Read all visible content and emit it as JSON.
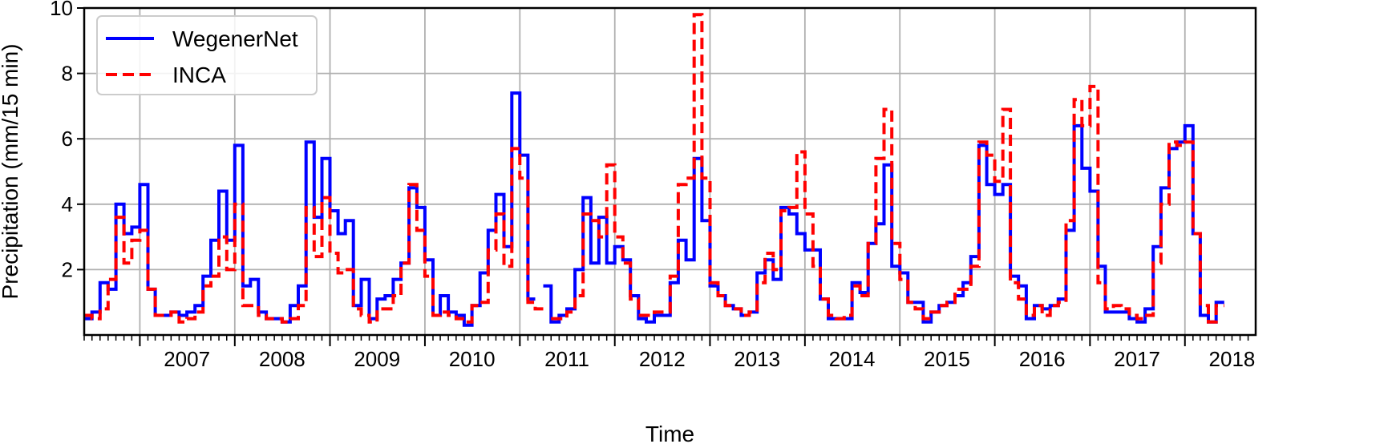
{
  "chart_data": {
    "type": "line",
    "xlabel": "Time",
    "ylabel": "Precipitation (mm/15 min)",
    "x_range": [
      "2006-06-01",
      "2018-09-30"
    ],
    "ylim": [
      0,
      10
    ],
    "yticks": [
      2,
      4,
      6,
      8,
      10
    ],
    "year_labels": [
      "2007",
      "2008",
      "2009",
      "2010",
      "2011",
      "2012",
      "2013",
      "2014",
      "2015",
      "2016",
      "2017",
      "2018"
    ],
    "grid": true,
    "legend": "top-left",
    "step": "post",
    "months": [
      "2006-06",
      "2006-07",
      "2006-08",
      "2006-09",
      "2006-10",
      "2006-11",
      "2006-12",
      "2007-01",
      "2007-02",
      "2007-03",
      "2007-04",
      "2007-05",
      "2007-06",
      "2007-07",
      "2007-08",
      "2007-09",
      "2007-10",
      "2007-11",
      "2007-12",
      "2008-01",
      "2008-02",
      "2008-03",
      "2008-04",
      "2008-05",
      "2008-06",
      "2008-07",
      "2008-08",
      "2008-09",
      "2008-10",
      "2008-11",
      "2008-12",
      "2009-01",
      "2009-02",
      "2009-03",
      "2009-04",
      "2009-05",
      "2009-06",
      "2009-07",
      "2009-08",
      "2009-09",
      "2009-10",
      "2009-11",
      "2009-12",
      "2010-01",
      "2010-02",
      "2010-03",
      "2010-04",
      "2010-05",
      "2010-06",
      "2010-07",
      "2010-08",
      "2010-09",
      "2010-10",
      "2010-11",
      "2010-12",
      "2011-01",
      "2011-02",
      "2011-03",
      "2011-04",
      "2011-05",
      "2011-06",
      "2011-07",
      "2011-08",
      "2011-09",
      "2011-10",
      "2011-11",
      "2011-12",
      "2012-01",
      "2012-02",
      "2012-03",
      "2012-04",
      "2012-05",
      "2012-06",
      "2012-07",
      "2012-08",
      "2012-09",
      "2012-10",
      "2012-11",
      "2012-12",
      "2013-01",
      "2013-02",
      "2013-03",
      "2013-04",
      "2013-05",
      "2013-06",
      "2013-07",
      "2013-08",
      "2013-09",
      "2013-10",
      "2013-11",
      "2013-12",
      "2014-01",
      "2014-02",
      "2014-03",
      "2014-04",
      "2014-05",
      "2014-06",
      "2014-07",
      "2014-08",
      "2014-09",
      "2014-10",
      "2014-11",
      "2014-12",
      "2015-01",
      "2015-02",
      "2015-03",
      "2015-04",
      "2015-05",
      "2015-06",
      "2015-07",
      "2015-08",
      "2015-09",
      "2015-10",
      "2015-11",
      "2015-12",
      "2016-01",
      "2016-02",
      "2016-03",
      "2016-04",
      "2016-05",
      "2016-06",
      "2016-07",
      "2016-08",
      "2016-09",
      "2016-10",
      "2016-11",
      "2016-12",
      "2017-01",
      "2017-02",
      "2017-03",
      "2017-04",
      "2017-05",
      "2017-06",
      "2017-07",
      "2017-08",
      "2017-09",
      "2017-10",
      "2017-11",
      "2017-12",
      "2018-01",
      "2018-02",
      "2018-03",
      "2018-04",
      "2018-05",
      "2018-06",
      "2018-07",
      "2018-08",
      "2018-09"
    ],
    "series": [
      {
        "name": "WegenerNet",
        "color": "#0000ff",
        "dash": "solid",
        "values": [
          0.5,
          0.7,
          1.6,
          1.4,
          4.0,
          3.1,
          3.3,
          4.6,
          1.4,
          0.6,
          0.6,
          0.7,
          0.6,
          0.7,
          0.9,
          1.8,
          2.9,
          4.4,
          2.9,
          5.8,
          1.5,
          1.7,
          0.7,
          0.5,
          0.5,
          0.4,
          0.9,
          1.5,
          5.9,
          3.6,
          5.4,
          3.8,
          3.1,
          3.5,
          0.9,
          1.7,
          0.5,
          1.1,
          1.2,
          1.7,
          2.2,
          4.5,
          3.9,
          2.3,
          0.6,
          1.2,
          0.7,
          0.6,
          0.3,
          0.9,
          1.9,
          3.2,
          4.3,
          2.7,
          7.4,
          5.5,
          1.1,
          null,
          1.5,
          0.4,
          0.6,
          0.8,
          2.0,
          4.2,
          2.2,
          3.6,
          2.2,
          2.7,
          2.3,
          1.2,
          0.5,
          0.4,
          0.6,
          0.6,
          1.6,
          2.9,
          2.3,
          5.4,
          3.5,
          1.5,
          1.2,
          0.9,
          0.8,
          0.6,
          0.7,
          1.9,
          2.3,
          1.7,
          3.9,
          3.7,
          3.1,
          2.6,
          2.6,
          1.1,
          0.5,
          0.5,
          0.5,
          1.6,
          1.3,
          2.8,
          3.4,
          5.2,
          2.1,
          1.9,
          1.0,
          1.0,
          0.4,
          0.7,
          0.9,
          1.0,
          1.2,
          1.6,
          2.4,
          5.8,
          4.6,
          4.3,
          4.6,
          1.8,
          1.5,
          0.5,
          0.9,
          0.8,
          0.9,
          1.1,
          3.2,
          6.4,
          5.1,
          4.4,
          2.1,
          0.7,
          0.7,
          0.7,
          0.5,
          0.4,
          0.8,
          2.7,
          4.5,
          5.7,
          5.9,
          6.4,
          3.1,
          0.6,
          0.4,
          1.0
        ]
      },
      {
        "name": "INCA",
        "color": "#ff0000",
        "dash": "dashed",
        "values": [
          0.6,
          0.5,
          0.8,
          1.7,
          3.6,
          2.2,
          2.9,
          3.2,
          1.4,
          0.6,
          0.6,
          0.7,
          0.4,
          0.5,
          0.7,
          1.5,
          1.8,
          3.0,
          2.0,
          4.0,
          0.9,
          0.9,
          0.6,
          0.5,
          0.5,
          0.4,
          0.5,
          0.9,
          3.9,
          2.4,
          4.2,
          2.5,
          1.9,
          2.0,
          0.8,
          0.6,
          0.4,
          0.8,
          0.8,
          1.2,
          2.2,
          4.6,
          3.2,
          1.8,
          0.6,
          0.7,
          0.6,
          0.5,
          0.4,
          0.9,
          1.0,
          2.6,
          3.7,
          2.1,
          5.7,
          4.8,
          1.0,
          0.8,
          null,
          0.5,
          0.5,
          0.7,
          1.2,
          3.7,
          3.5,
          3.0,
          5.2,
          3.0,
          2.2,
          1.1,
          0.6,
          0.6,
          0.7,
          0.7,
          1.8,
          4.6,
          4.8,
          9.8,
          4.8,
          1.6,
          1.2,
          0.9,
          0.8,
          0.6,
          0.7,
          1.6,
          2.5,
          2.0,
          3.8,
          3.9,
          5.6,
          3.7,
          2.1,
          1.1,
          0.6,
          0.5,
          0.6,
          1.5,
          1.2,
          2.8,
          5.4,
          6.9,
          2.8,
          1.7,
          1.0,
          0.8,
          0.5,
          0.7,
          0.9,
          1.0,
          1.4,
          1.4,
          2.1,
          5.9,
          5.5,
          4.7,
          6.9,
          1.6,
          1.1,
          0.6,
          0.9,
          0.6,
          0.9,
          1.0,
          3.5,
          7.2,
          6.4,
          7.6,
          1.6,
          0.8,
          0.9,
          0.8,
          0.6,
          0.5,
          0.6,
          2.2,
          4.0,
          5.9,
          5.8,
          5.9,
          3.1,
          0.9,
          0.4,
          0.9
        ]
      }
    ]
  }
}
